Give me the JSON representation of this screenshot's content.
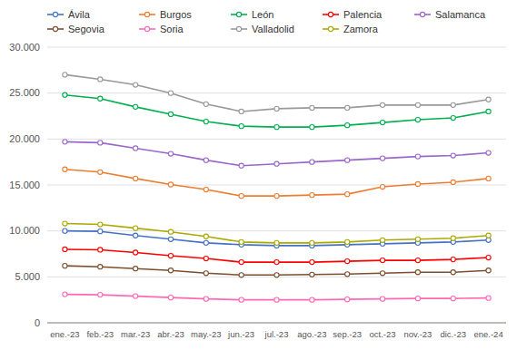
{
  "chart_data": {
    "type": "line",
    "categories": [
      "ene.-23",
      "feb.-23",
      "mar.-23",
      "abr.-23",
      "may.-23",
      "jun.-23",
      "jul.-23",
      "ago.-23",
      "sep.-23",
      "oct.-23",
      "nov.-23",
      "dic.-23",
      "ene.-24"
    ],
    "series": [
      {
        "name": "Ávila",
        "color": "#4472C4",
        "values": [
          10000,
          9950,
          9500,
          9100,
          8700,
          8500,
          8400,
          8400,
          8500,
          8600,
          8700,
          8800,
          9000
        ]
      },
      {
        "name": "Burgos",
        "color": "#ED7D31",
        "values": [
          16700,
          16400,
          15700,
          15050,
          14500,
          13800,
          13800,
          13900,
          14000,
          14800,
          15100,
          15300,
          15700
        ]
      },
      {
        "name": "León",
        "color": "#00B050",
        "values": [
          24800,
          24400,
          23500,
          22700,
          21900,
          21400,
          21300,
          21300,
          21500,
          21800,
          22100,
          22300,
          23000
        ]
      },
      {
        "name": "Palencia",
        "color": "#FF0000",
        "values": [
          8000,
          7950,
          7650,
          7300,
          7000,
          6600,
          6600,
          6600,
          6700,
          6800,
          6800,
          6900,
          7100
        ]
      },
      {
        "name": "Salamanca",
        "color": "#9966CC",
        "values": [
          19700,
          19600,
          19000,
          18400,
          17700,
          17100,
          17300,
          17500,
          17700,
          17900,
          18100,
          18200,
          18500
        ]
      },
      {
        "name": "Segovia",
        "color": "#7B4F2E",
        "values": [
          6200,
          6100,
          5900,
          5700,
          5400,
          5200,
          5200,
          5250,
          5300,
          5400,
          5500,
          5500,
          5700
        ]
      },
      {
        "name": "Soria",
        "color": "#FF69B4",
        "values": [
          3100,
          3050,
          2900,
          2750,
          2600,
          2500,
          2500,
          2500,
          2550,
          2600,
          2650,
          2650,
          2700
        ]
      },
      {
        "name": "Valladolid",
        "color": "#999999",
        "values": [
          27000,
          26500,
          25900,
          25000,
          23800,
          23000,
          23300,
          23400,
          23400,
          23700,
          23700,
          23700,
          24300
        ]
      },
      {
        "name": "Zamora",
        "color": "#AAAA00",
        "values": [
          10800,
          10700,
          10300,
          9900,
          9400,
          8800,
          8700,
          8700,
          8800,
          9000,
          9100,
          9200,
          9500
        ]
      }
    ],
    "ylim": [
      0,
      30000
    ],
    "yticks": [
      0,
      {
        "value": 5000,
        "label": "5.000"
      },
      {
        "value": 10000,
        "label": "10.000"
      },
      {
        "value": 15000,
        "label": "15.000"
      },
      {
        "value": 20000,
        "label": "20.000"
      },
      {
        "value": 25000,
        "label": "25.000"
      },
      {
        "value": 30000,
        "label": "30.000"
      }
    ],
    "grid": true,
    "legend": "top",
    "marker": "circle"
  }
}
